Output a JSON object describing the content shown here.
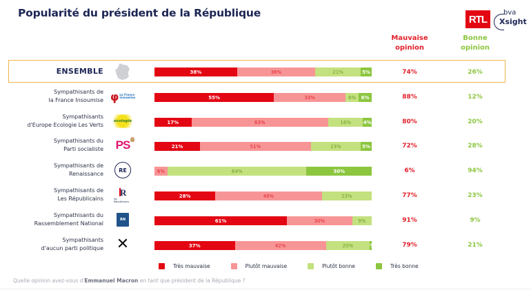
{
  "title": "Popularité du président de la République",
  "logos": {
    "rtl": "RTL",
    "bva": "bva",
    "xsight": "Xsight"
  },
  "columns": {
    "bad": "Mauvaise opinion",
    "bad_line1": "Mauvaise",
    "bad_line2": "opinion",
    "good_line1": "Bonne",
    "good_line2": "opinion"
  },
  "colors": {
    "tres_mauvaise": "#e30613",
    "plutot_mauvaise": "#f79596",
    "plutot_bonne": "#c3e17e",
    "tres_bonne": "#8cc63f",
    "highlight_border": "#f0b44a",
    "title": "#1c2554"
  },
  "chart_data": {
    "type": "bar",
    "orientation": "horizontal-stacked-100",
    "title": "Popularité du président de la République",
    "question": "Quelle opinion avez-vous d'Emmanuel Macron en tant que président de la République ?",
    "legend": [
      "Très mauvaise",
      "Plutôt mauvaise",
      "Plutôt bonne",
      "Très bonne"
    ],
    "legend_position": "bottom",
    "categories": [
      "ENSEMBLE",
      "Sympathisants de la France Insoumise",
      "Sympathisants d'Europe Ecologie Les Verts",
      "Sympathisants du Parti socialiste",
      "Sympathisants de Renaissance",
      "Sympathisants de Les Républicains",
      "Sympathisants du Rassemblement National",
      "Sympathisants d'aucun parti politique"
    ],
    "series": [
      {
        "name": "Très mauvaise",
        "values": [
          38,
          55,
          17,
          21,
          0,
          28,
          61,
          37
        ]
      },
      {
        "name": "Plutôt mauvaise",
        "values": [
          36,
          33,
          63,
          51,
          6,
          49,
          30,
          42
        ]
      },
      {
        "name": "Plutôt bonne",
        "values": [
          21,
          6,
          16,
          23,
          64,
          23,
          9,
          20
        ]
      },
      {
        "name": "Très bonne",
        "values": [
          5,
          6,
          4,
          5,
          30,
          0,
          0,
          1
        ]
      }
    ],
    "totals": {
      "mauvaise_opinion": [
        74,
        88,
        80,
        72,
        6,
        77,
        91,
        79
      ],
      "bonne_opinion": [
        26,
        12,
        20,
        28,
        94,
        23,
        9,
        21
      ]
    }
  },
  "rows": [
    {
      "line1": "ENSEMBLE",
      "line2": "",
      "logo": "france-map",
      "segments": [
        "38%",
        "36%",
        "21%",
        "5%"
      ],
      "bad": "74%",
      "good": "26%"
    },
    {
      "line1": "Sympathisants de",
      "line2": "la France Insoumise",
      "logo": "lfi",
      "logo_text": "La France insoumise",
      "segments": [
        "55%",
        "33%",
        "6%",
        "6%"
      ],
      "bad": "88%",
      "good": "12%"
    },
    {
      "line1": "Sympathisants",
      "line2": "d'Europe Ecologie Les Verts",
      "logo": "eelv",
      "logo_text": "écologie",
      "segments": [
        "17%",
        "63%",
        "16%",
        "4%"
      ],
      "bad": "80%",
      "good": "20%"
    },
    {
      "line1": "Sympathisants du",
      "line2": "Parti socialiste",
      "logo": "ps",
      "logo_text": "PS",
      "segments": [
        "21%",
        "51%",
        "23%",
        "5%"
      ],
      "bad": "72%",
      "good": "28%"
    },
    {
      "line1": "Sympathisants de",
      "line2": "Renaissance",
      "logo": "re",
      "logo_text": "RE",
      "segments": [
        "",
        "6%",
        "64%",
        "30%"
      ],
      "bad": "6%",
      "good": "94%"
    },
    {
      "line1": "Sympathisants de",
      "line2": "Les Républicains",
      "logo": "lr",
      "logo_text": "R",
      "logo_small": "les Républicains",
      "segments": [
        "28%",
        "49%",
        "23%",
        ""
      ],
      "bad": "77%",
      "good": "23%"
    },
    {
      "line1": "Sympathisants du",
      "line2": "Rassemblement National",
      "logo": "rn",
      "logo_text": "RN",
      "segments": [
        "61%",
        "30%",
        "9%",
        ""
      ],
      "bad": "91%",
      "good": "9%"
    },
    {
      "line1": "Sympathisants",
      "line2": "d'aucun parti politique",
      "logo": "cross",
      "logo_text": "✕",
      "segments": [
        "37%",
        "42%",
        "20%",
        "1%"
      ],
      "bad": "79%",
      "good": "21%"
    }
  ],
  "footnote": {
    "before": "Quelle opinion avez-vous d'",
    "bold": "Emmanuel Macron",
    "after": " en tant que président de la République ?"
  }
}
